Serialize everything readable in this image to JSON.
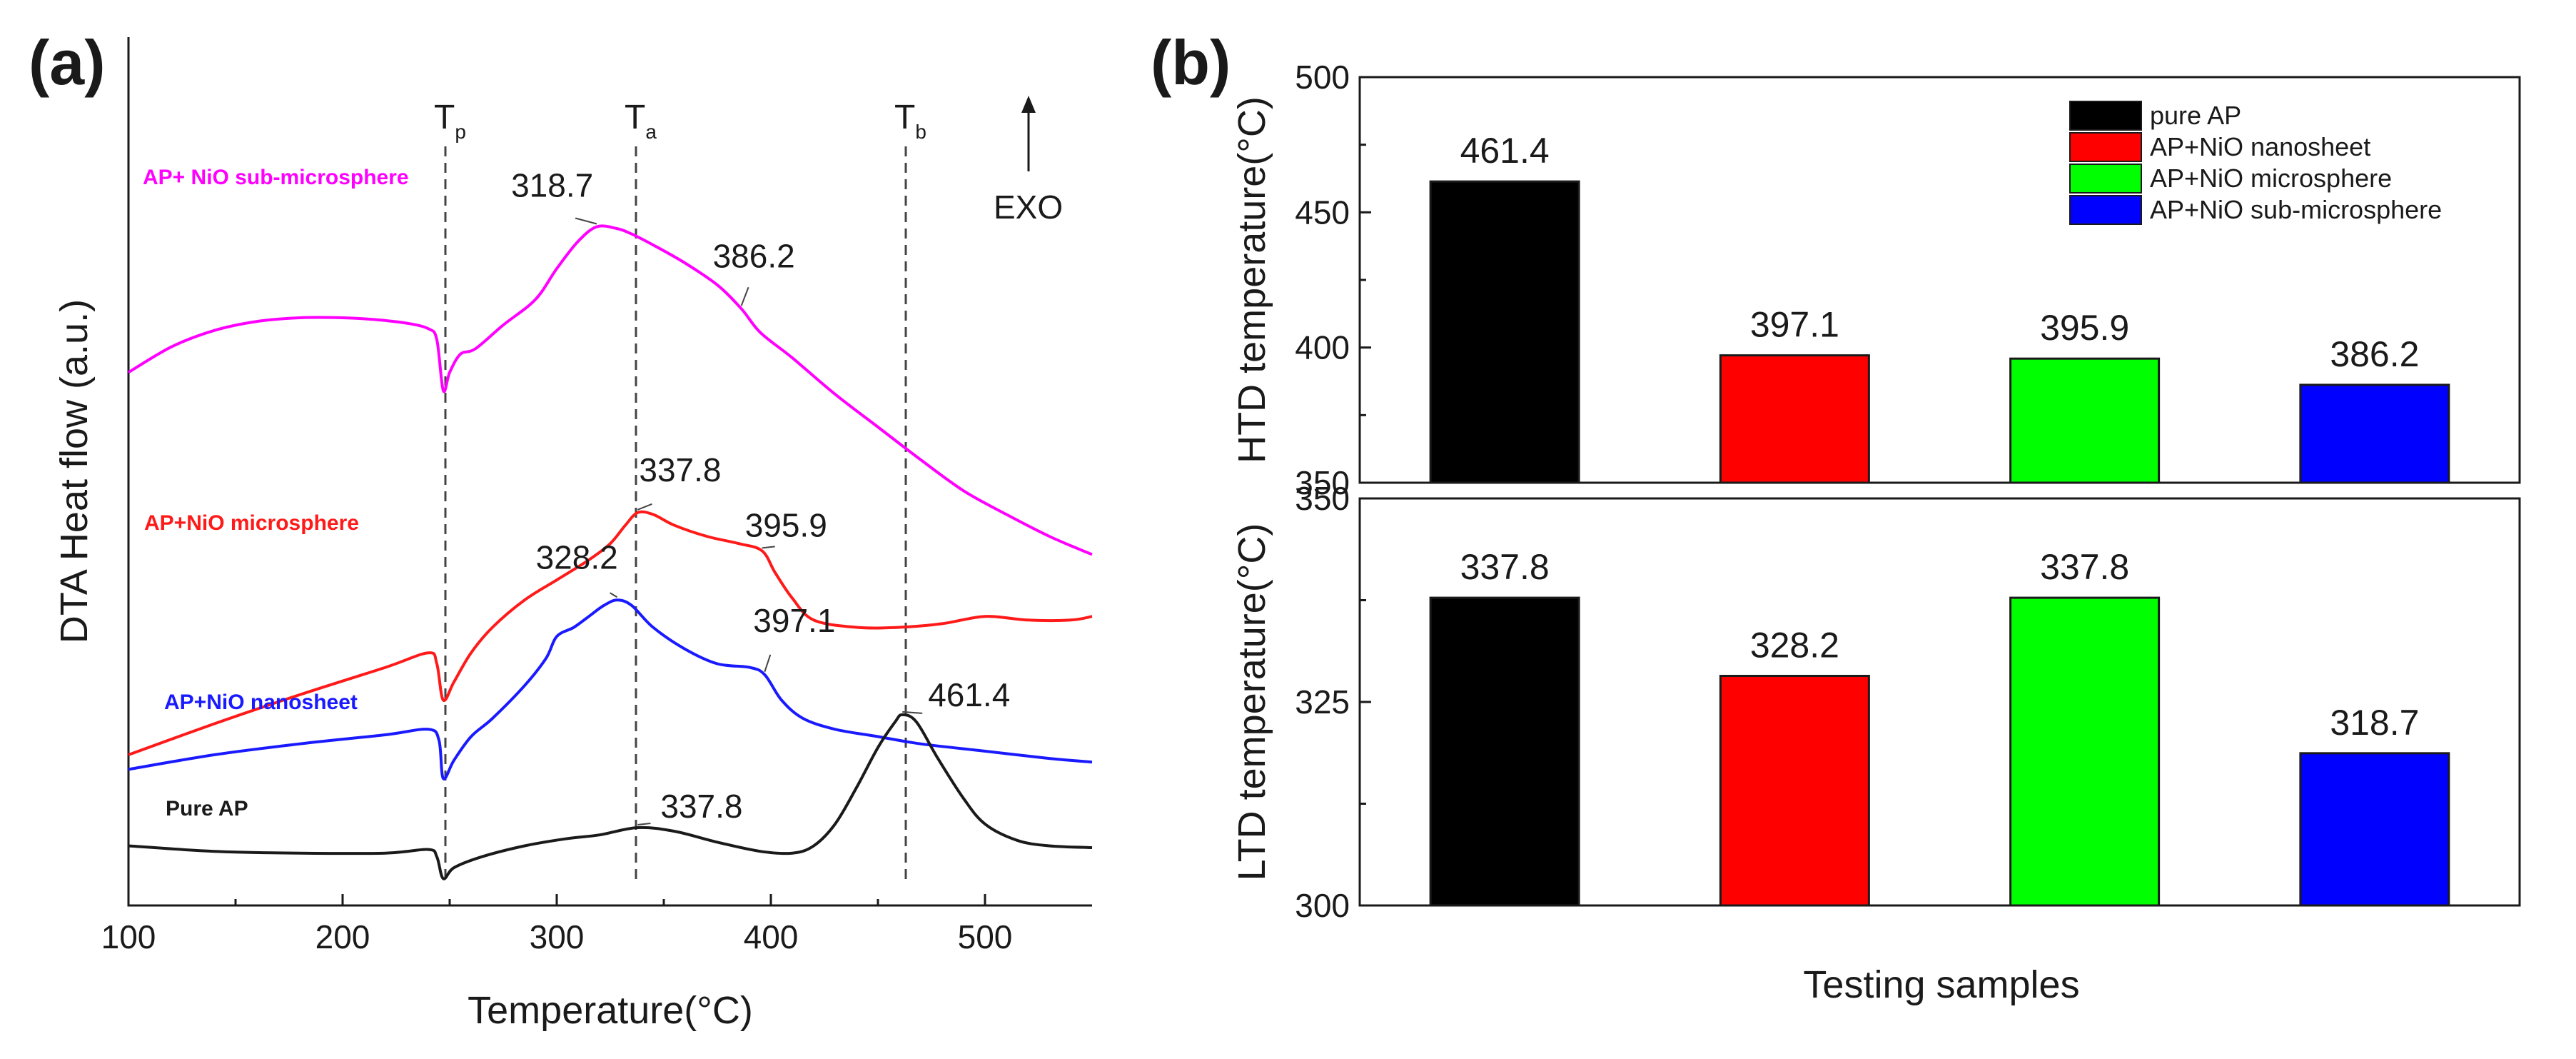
{
  "chart_data": [
    {
      "type": "line",
      "panel": "(a)",
      "xlabel": "Temperature(°C)",
      "ylabel": "DTA Heat flow (a.u.)",
      "xlim": [
        100,
        550
      ],
      "xticks": [
        100,
        200,
        300,
        400,
        500
      ],
      "y_tick_labels": false,
      "grid": false,
      "markers": [
        {
          "name": "T",
          "sub": "p",
          "x": 248
        },
        {
          "name": "T",
          "sub": "a",
          "x": 337
        },
        {
          "name": "T",
          "sub": "b",
          "x": 463
        }
      ],
      "exo_label": "EXO",
      "series": [
        {
          "name": "AP+ NiO sub-microsphere",
          "color": "#ff00ff",
          "offset": 2.95,
          "points": [
            [
              100,
              3.7
            ],
            [
              120,
              3.84
            ],
            [
              140,
              3.93
            ],
            [
              160,
              3.98
            ],
            [
              180,
              4.0
            ],
            [
              200,
              4.0
            ],
            [
              215,
              3.99
            ],
            [
              230,
              3.97
            ],
            [
              240,
              3.94
            ],
            [
              244,
              3.88
            ],
            [
              247,
              3.6
            ],
            [
              250,
              3.7
            ],
            [
              255,
              3.8
            ],
            [
              262,
              3.83
            ],
            [
              275,
              3.96
            ],
            [
              290,
              4.1
            ],
            [
              300,
              4.27
            ],
            [
              310,
              4.42
            ],
            [
              318.7,
              4.5
            ],
            [
              328,
              4.49
            ],
            [
              335,
              4.46
            ],
            [
              345,
              4.4
            ],
            [
              360,
              4.3
            ],
            [
              375,
              4.18
            ],
            [
              386.2,
              4.05
            ],
            [
              395,
              3.92
            ],
            [
              410,
              3.78
            ],
            [
              430,
              3.58
            ],
            [
              450,
              3.4
            ],
            [
              470,
              3.22
            ],
            [
              490,
              3.05
            ],
            [
              510,
              2.92
            ],
            [
              530,
              2.8
            ],
            [
              550,
              2.7
            ]
          ]
        },
        {
          "name": "AP+NiO microsphere",
          "color": "#ff1a1a",
          "offset": 1.2,
          "points": [
            [
              100,
              1.6
            ],
            [
              140,
              1.77
            ],
            [
              180,
              1.93
            ],
            [
              220,
              2.08
            ],
            [
              240,
              2.16
            ],
            [
              244,
              2.1
            ],
            [
              247,
              1.9
            ],
            [
              252,
              2.0
            ],
            [
              260,
              2.16
            ],
            [
              270,
              2.3
            ],
            [
              285,
              2.45
            ],
            [
              300,
              2.56
            ],
            [
              315,
              2.67
            ],
            [
              325,
              2.76
            ],
            [
              332,
              2.86
            ],
            [
              337.8,
              2.93
            ],
            [
              345,
              2.92
            ],
            [
              355,
              2.86
            ],
            [
              370,
              2.8
            ],
            [
              385,
              2.76
            ],
            [
              395.9,
              2.72
            ],
            [
              402,
              2.6
            ],
            [
              410,
              2.46
            ],
            [
              420,
              2.34
            ],
            [
              440,
              2.3
            ],
            [
              460,
              2.3
            ],
            [
              480,
              2.32
            ],
            [
              500,
              2.36
            ],
            [
              520,
              2.34
            ],
            [
              540,
              2.34
            ],
            [
              550,
              2.36
            ]
          ]
        },
        {
          "name": "AP+NiO nanosheet",
          "color": "#1a1aff",
          "offset": 0.6,
          "points": [
            [
              100,
              1.52
            ],
            [
              140,
              1.6
            ],
            [
              180,
              1.66
            ],
            [
              220,
              1.71
            ],
            [
              240,
              1.74
            ],
            [
              245,
              1.68
            ],
            [
              247,
              1.47
            ],
            [
              252,
              1.57
            ],
            [
              260,
              1.7
            ],
            [
              270,
              1.8
            ],
            [
              285,
              1.98
            ],
            [
              295,
              2.13
            ],
            [
              300,
              2.25
            ],
            [
              308,
              2.3
            ],
            [
              315,
              2.36
            ],
            [
              322,
              2.42
            ],
            [
              328.2,
              2.45
            ],
            [
              335,
              2.42
            ],
            [
              345,
              2.3
            ],
            [
              360,
              2.18
            ],
            [
              375,
              2.1
            ],
            [
              390,
              2.08
            ],
            [
              397.1,
              2.04
            ],
            [
              405,
              1.9
            ],
            [
              415,
              1.8
            ],
            [
              430,
              1.74
            ],
            [
              450,
              1.7
            ],
            [
              470,
              1.66
            ],
            [
              500,
              1.62
            ],
            [
              530,
              1.58
            ],
            [
              550,
              1.56
            ]
          ]
        },
        {
          "name": "Pure AP",
          "color": "#1a1a1a",
          "offset": 0.0,
          "points": [
            [
              100,
              1.1
            ],
            [
              140,
              1.07
            ],
            [
              180,
              1.06
            ],
            [
              220,
              1.06
            ],
            [
              240,
              1.08
            ],
            [
              244,
              1.04
            ],
            [
              247,
              0.92
            ],
            [
              252,
              0.98
            ],
            [
              265,
              1.04
            ],
            [
              285,
              1.1
            ],
            [
              305,
              1.14
            ],
            [
              320,
              1.16
            ],
            [
              337.8,
              1.2
            ],
            [
              355,
              1.18
            ],
            [
              375,
              1.12
            ],
            [
              395,
              1.07
            ],
            [
              410,
              1.06
            ],
            [
              420,
              1.1
            ],
            [
              430,
              1.22
            ],
            [
              440,
              1.42
            ],
            [
              450,
              1.64
            ],
            [
              458,
              1.78
            ],
            [
              461.4,
              1.82
            ],
            [
              468,
              1.78
            ],
            [
              478,
              1.58
            ],
            [
              490,
              1.36
            ],
            [
              500,
              1.22
            ],
            [
              515,
              1.13
            ],
            [
              530,
              1.1
            ],
            [
              550,
              1.09
            ]
          ]
        }
      ],
      "peak_labels": [
        {
          "text": "318.7",
          "series": "AP+ NiO sub-microsphere",
          "x": 318.7
        },
        {
          "text": "386.2",
          "series": "AP+ NiO sub-microsphere",
          "x": 386.2
        },
        {
          "text": "337.8",
          "series": "AP+NiO microsphere",
          "x": 337.8
        },
        {
          "text": "395.9",
          "series": "AP+NiO microsphere",
          "x": 395.9
        },
        {
          "text": "328.2",
          "series": "AP+NiO nanosheet",
          "x": 328.2
        },
        {
          "text": "397.1",
          "series": "AP+NiO nanosheet",
          "x": 397.1
        },
        {
          "text": "461.4",
          "series": "Pure AP",
          "x": 461.4
        },
        {
          "text": "337.8",
          "series": "Pure AP",
          "x": 337.8
        }
      ]
    },
    {
      "type": "bar",
      "panel": "(b)",
      "xlabel": "Testing samples",
      "legend_position": "top-right",
      "categories": [
        "pure AP",
        "AP+NiO nanosheet",
        "AP+NiO microsphere",
        "AP+NiO sub-microsphere"
      ],
      "colors": [
        "#000000",
        "#ff0000",
        "#00ff00",
        "#0000ff"
      ],
      "subplots": [
        {
          "name": "HTD",
          "ylabel": "HTD temperature(°C)",
          "ylim": [
            350,
            500
          ],
          "yticks": [
            350,
            400,
            450,
            500
          ],
          "values": [
            461.4,
            397.1,
            395.9,
            386.2
          ],
          "labels": [
            "461.4",
            "397.1",
            "395.9",
            "386.2"
          ]
        },
        {
          "name": "LTD",
          "ylabel": "LTD temperature(°C)",
          "ylim": [
            300,
            350
          ],
          "yticks": [
            300,
            325,
            350
          ],
          "values": [
            337.8,
            328.2,
            337.8,
            318.7
          ],
          "labels": [
            "337.8",
            "328.2",
            "337.8",
            "318.7"
          ]
        }
      ]
    }
  ]
}
